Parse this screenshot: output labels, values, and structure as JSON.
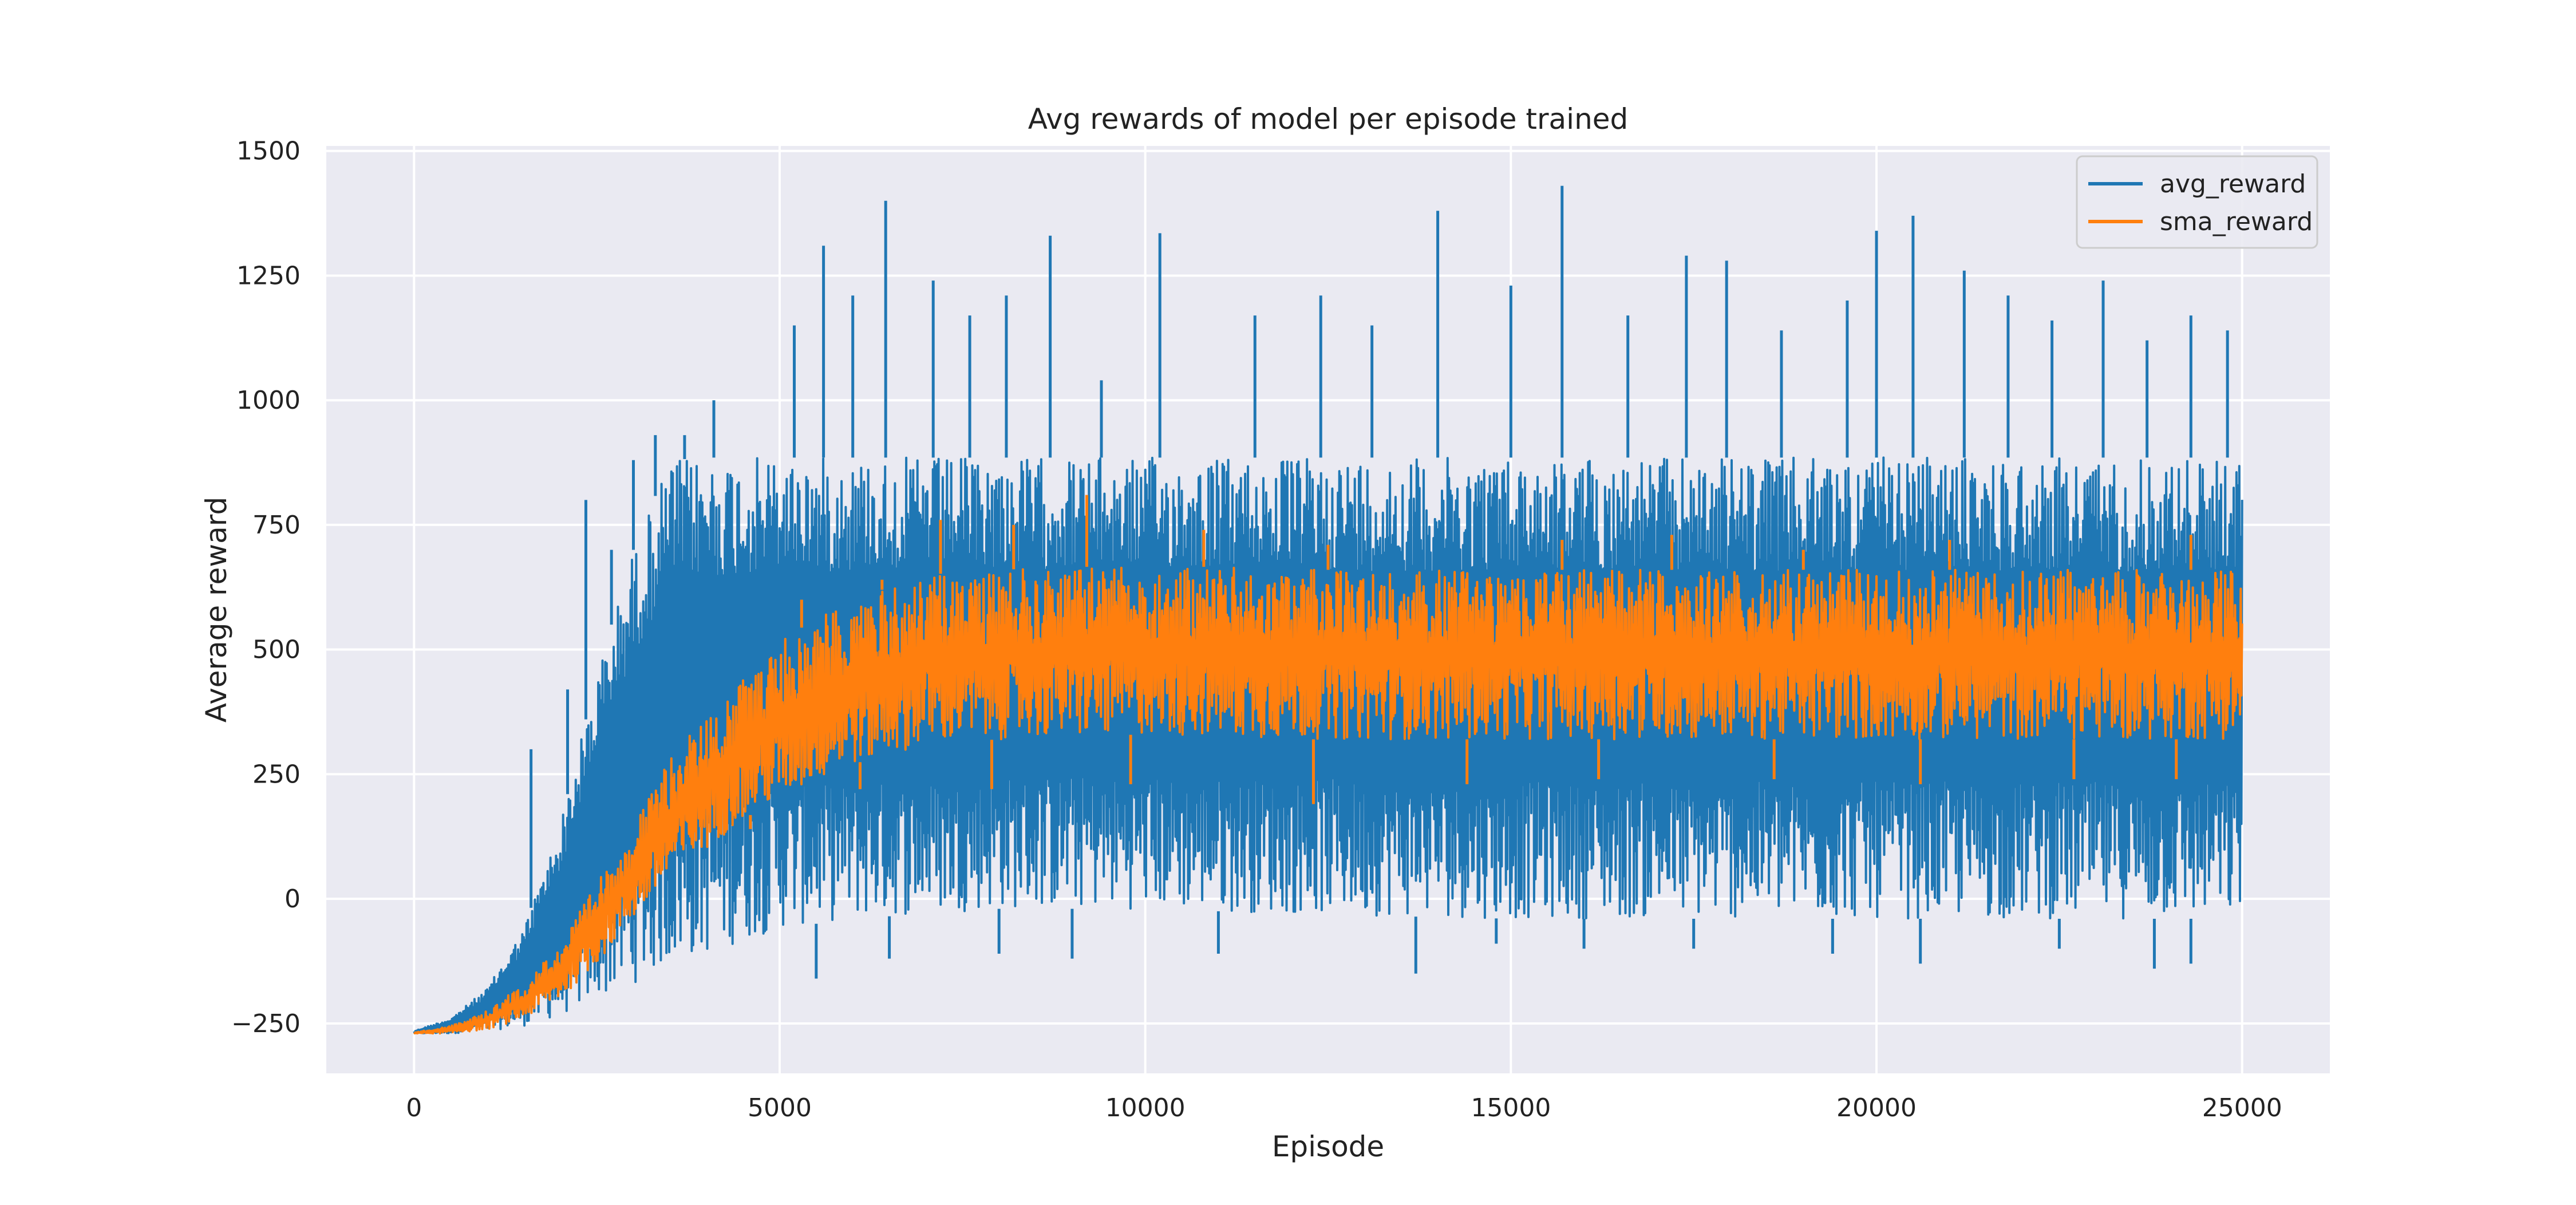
{
  "chart_data": {
    "type": "line",
    "title": "Avg rewards of model per episode trained",
    "xlabel": "Episode",
    "ylabel": "Average reward",
    "xlim": [
      -1200,
      26200
    ],
    "ylim": [
      -350,
      1510
    ],
    "xticks": [
      0,
      5000,
      10000,
      15000,
      20000,
      25000
    ],
    "xtick_labels": [
      "0",
      "5000",
      "10000",
      "15000",
      "20000",
      "25000"
    ],
    "yticks": [
      -250,
      0,
      250,
      500,
      750,
      1000,
      1250,
      1500
    ],
    "ytick_labels": [
      "−250",
      "0",
      "250",
      "500",
      "750",
      "1000",
      "1250",
      "1500"
    ],
    "grid": true,
    "legend_position": "top-right",
    "colors": {
      "avg_reward": "#1f77b4",
      "sma_reward": "#ff7f0e",
      "plot_background": "#eaeaf2",
      "grid": "#ffffff"
    },
    "series": [
      {
        "name": "avg_reward",
        "x": [
          0,
          500,
          1000,
          1500,
          2000,
          2500,
          3000,
          3500,
          4000,
          5000,
          6000,
          7000,
          8000,
          10000,
          12000,
          15000,
          18000,
          20000,
          22000,
          25000
        ],
        "lower": [
          -270,
          -270,
          -265,
          -255,
          -235,
          -200,
          -170,
          -130,
          -110,
          -60,
          -40,
          -30,
          -20,
          -20,
          -30,
          -40,
          -40,
          -40,
          -40,
          -40
        ],
        "upper": [
          -265,
          -240,
          -180,
          -60,
          150,
          450,
          700,
          880,
          885,
          885,
          885,
          885,
          885,
          885,
          885,
          885,
          885,
          885,
          885,
          885
        ],
        "peaks": [
          [
            1600,
            300
          ],
          [
            2100,
            420
          ],
          [
            2350,
            800
          ],
          [
            2700,
            700
          ],
          [
            3000,
            880
          ],
          [
            3300,
            930
          ],
          [
            3700,
            930
          ],
          [
            4100,
            1000
          ],
          [
            5200,
            1150
          ],
          [
            5600,
            1310
          ],
          [
            6000,
            1210
          ],
          [
            6450,
            1400
          ],
          [
            7100,
            1240
          ],
          [
            7600,
            1170
          ],
          [
            8100,
            1210
          ],
          [
            8700,
            1330
          ],
          [
            9400,
            1040
          ],
          [
            10200,
            1335
          ],
          [
            11500,
            1170
          ],
          [
            12400,
            1210
          ],
          [
            13100,
            1150
          ],
          [
            14000,
            1380
          ],
          [
            15000,
            1230
          ],
          [
            15700,
            1430
          ],
          [
            16600,
            1170
          ],
          [
            17400,
            1290
          ],
          [
            17950,
            1280
          ],
          [
            18700,
            1140
          ],
          [
            19600,
            1200
          ],
          [
            20000,
            1340
          ],
          [
            20500,
            1370
          ],
          [
            21200,
            1260
          ],
          [
            21800,
            1210
          ],
          [
            22400,
            1160
          ],
          [
            23100,
            1240
          ],
          [
            23700,
            1120
          ],
          [
            24300,
            1170
          ],
          [
            24800,
            1140
          ]
        ],
        "troughs": [
          [
            5500,
            -160
          ],
          [
            6500,
            -120
          ],
          [
            8000,
            -110
          ],
          [
            9000,
            -120
          ],
          [
            11000,
            -110
          ],
          [
            13700,
            -150
          ],
          [
            14800,
            -90
          ],
          [
            16000,
            -100
          ],
          [
            17500,
            -100
          ],
          [
            19400,
            -110
          ],
          [
            20600,
            -130
          ],
          [
            22500,
            -100
          ],
          [
            23800,
            -140
          ],
          [
            24300,
            -130
          ]
        ]
      },
      {
        "name": "sma_reward",
        "x": [
          0,
          500,
          1000,
          1500,
          2000,
          2500,
          3000,
          3500,
          4000,
          4500,
          5000,
          6000,
          7000,
          8000,
          10000,
          12000,
          15000,
          18000,
          20000,
          22000,
          25000
        ],
        "lower": [
          -270,
          -270,
          -262,
          -240,
          -200,
          -130,
          -40,
          40,
          100,
          160,
          200,
          270,
          310,
          320,
          330,
          320,
          320,
          320,
          320,
          320,
          320
        ],
        "upper": [
          -268,
          -255,
          -225,
          -170,
          -90,
          30,
          150,
          280,
          370,
          440,
          520,
          600,
          650,
          660,
          670,
          660,
          660,
          660,
          660,
          660,
          660
        ],
        "peaks": [
          [
            5300,
            600
          ],
          [
            6400,
            640
          ],
          [
            7200,
            760
          ],
          [
            8200,
            750
          ],
          [
            9200,
            810
          ],
          [
            10800,
            740
          ],
          [
            12500,
            710
          ],
          [
            15700,
            720
          ],
          [
            17200,
            730
          ],
          [
            19000,
            700
          ],
          [
            21000,
            720
          ],
          [
            24300,
            730
          ]
        ],
        "troughs": [
          [
            4600,
            140
          ],
          [
            6100,
            220
          ],
          [
            7900,
            220
          ],
          [
            9800,
            230
          ],
          [
            12300,
            190
          ],
          [
            14400,
            230
          ],
          [
            16200,
            240
          ],
          [
            18600,
            240
          ],
          [
            20600,
            230
          ],
          [
            22700,
            240
          ],
          [
            24100,
            240
          ]
        ]
      }
    ]
  }
}
